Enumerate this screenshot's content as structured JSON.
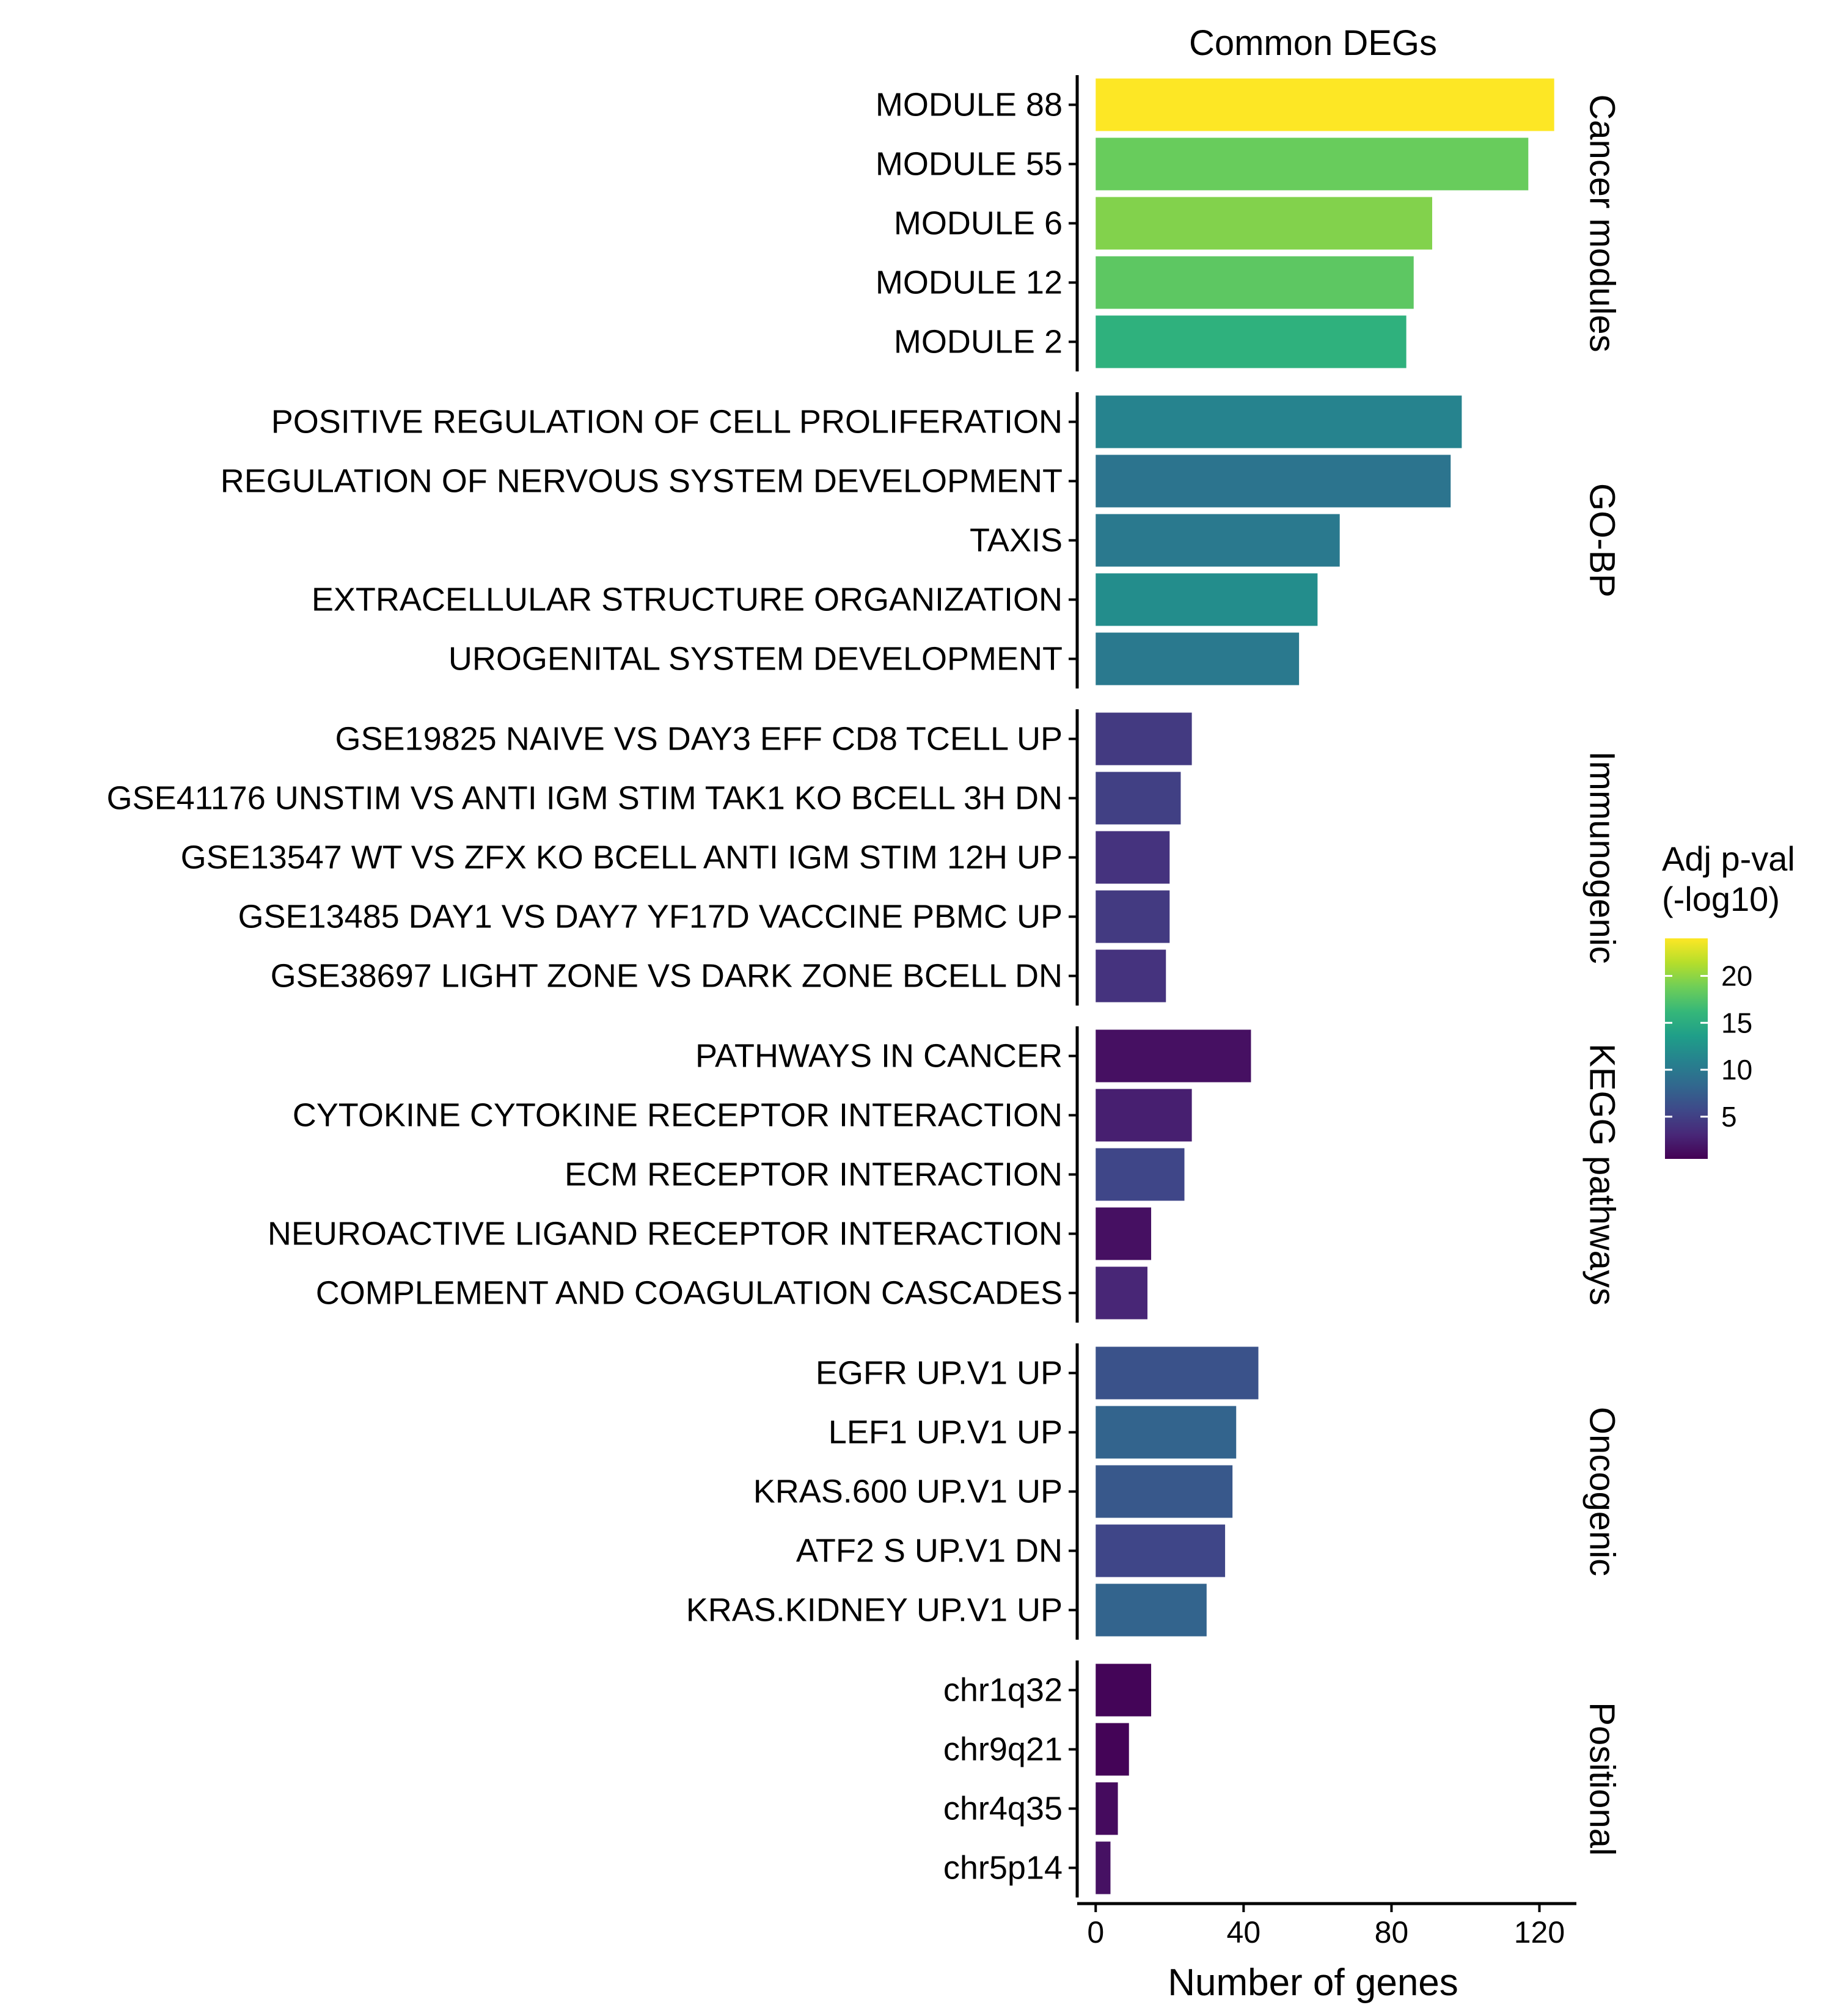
{
  "chart_data": {
    "type": "bar",
    "orientation": "horizontal",
    "title": "Common DEGs",
    "xlabel": "Number of genes",
    "xlim": [
      -5,
      130
    ],
    "xticks": [
      0,
      40,
      80,
      120
    ],
    "legend": {
      "title_lines": [
        "Adj p-val",
        "(-log10)"
      ],
      "placement": "right",
      "min": 0.5,
      "max": 24,
      "ticks": [
        5,
        10,
        15,
        20
      ],
      "palette": "viridis"
    },
    "facets": [
      {
        "name": "Cancer modules",
        "bars": [
          {
            "label": "MODULE 88",
            "value": 124,
            "padj": 24.0
          },
          {
            "label": "MODULE 55",
            "value": 117,
            "padj": 18.5
          },
          {
            "label": "MODULE 6",
            "value": 91,
            "padj": 19.5
          },
          {
            "label": "MODULE 12",
            "value": 86,
            "padj": 18.0
          },
          {
            "label": "MODULE 2",
            "value": 84,
            "padj": 15.5
          }
        ]
      },
      {
        "name": "GO-BP",
        "bars": [
          {
            "label": "POSITIVE REGULATION OF CELL PROLIFERATION",
            "value": 99,
            "padj": 11.0
          },
          {
            "label": "REGULATION OF NERVOUS SYSTEM DEVELOPMENT",
            "value": 96,
            "padj": 9.5
          },
          {
            "label": "TAXIS",
            "value": 66,
            "padj": 10.0
          },
          {
            "label": "EXTRACELLULAR STRUCTURE ORGANIZATION",
            "value": 60,
            "padj": 12.0
          },
          {
            "label": "UROGENITAL SYSTEM DEVELOPMENT",
            "value": 55,
            "padj": 10.0
          }
        ]
      },
      {
        "name": "Immunogenic",
        "bars": [
          {
            "label": "GSE19825 NAIVE VS DAY3 EFF CD8 TCELL UP",
            "value": 26,
            "padj": 4.5
          },
          {
            "label": "GSE41176 UNSTIM VS ANTI IGM STIM TAK1 KO BCELL 3H DN",
            "value": 23,
            "padj": 5.0
          },
          {
            "label": "GSE13547 WT VS ZFX KO BCELL ANTI IGM STIM 12H UP",
            "value": 20,
            "padj": 4.0
          },
          {
            "label": "GSE13485 DAY1 VS DAY7 YF17D VACCINE PBMC UP",
            "value": 20,
            "padj": 4.5
          },
          {
            "label": "GSE38697 LIGHT ZONE VS DARK ZONE BCELL DN",
            "value": 19,
            "padj": 4.0
          }
        ]
      },
      {
        "name": "KEGG pathways",
        "bars": [
          {
            "label": "PATHWAYS IN CANCER",
            "value": 42,
            "padj": 1.5
          },
          {
            "label": "CYTOKINE CYTOKINE RECEPTOR INTERACTION",
            "value": 26,
            "padj": 2.5
          },
          {
            "label": "ECM RECEPTOR INTERACTION",
            "value": 24,
            "padj": 5.5
          },
          {
            "label": "NEUROACTIVE LIGAND RECEPTOR INTERACTION",
            "value": 15,
            "padj": 1.5
          },
          {
            "label": "COMPLEMENT AND COAGULATION CASCADES",
            "value": 14,
            "padj": 3.0
          }
        ]
      },
      {
        "name": "Oncogenic",
        "bars": [
          {
            "label": "EGFR UP.V1 UP",
            "value": 44,
            "padj": 6.5
          },
          {
            "label": "LEF1 UP.V1 UP",
            "value": 38,
            "padj": 8.0
          },
          {
            "label": "KRAS.600 UP.V1 UP",
            "value": 37,
            "padj": 7.0
          },
          {
            "label": "ATF2 S UP.V1 DN",
            "value": 35,
            "padj": 5.5
          },
          {
            "label": "KRAS.KIDNEY UP.V1 UP",
            "value": 30,
            "padj": 8.0
          }
        ]
      },
      {
        "name": "Positional",
        "bars": [
          {
            "label": "chr1q32",
            "value": 15,
            "padj": 0.8
          },
          {
            "label": "chr9q21",
            "value": 9,
            "padj": 0.7
          },
          {
            "label": "chr4q35",
            "value": 6,
            "padj": 1.2
          },
          {
            "label": "chr5p14",
            "value": 4,
            "padj": 1.6
          }
        ]
      }
    ]
  }
}
